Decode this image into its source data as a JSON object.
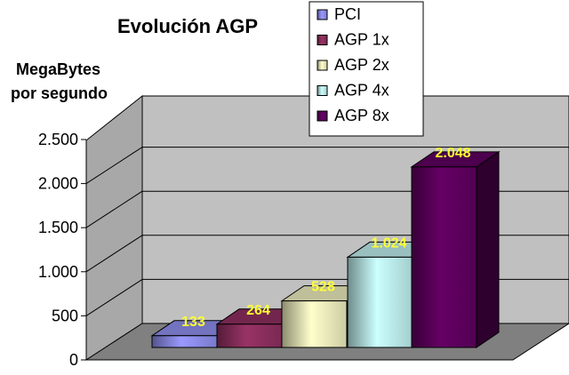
{
  "chart_data": {
    "type": "bar",
    "title": "Evolución AGP",
    "ylabel_lines": [
      "MegaBytes",
      "por segundo"
    ],
    "categories": [
      "PCI",
      "AGP 1x",
      "AGP 2x",
      "AGP 4x",
      "AGP 8x"
    ],
    "values": [
      133,
      264,
      528,
      1024,
      2048
    ],
    "value_labels": [
      "133",
      "264",
      "528",
      "1.024",
      "2.048"
    ],
    "ylim": [
      0,
      2500
    ],
    "yticks": [
      0,
      500,
      1000,
      1500,
      2000,
      2500
    ],
    "ytick_labels": [
      "0",
      "500",
      "1.000",
      "1.500",
      "2.000",
      "2.500"
    ],
    "grid": true,
    "legend_position": "top-right",
    "colors": [
      "#9999ff",
      "#993366",
      "#ffffcc",
      "#ccffff",
      "#660066"
    ]
  }
}
